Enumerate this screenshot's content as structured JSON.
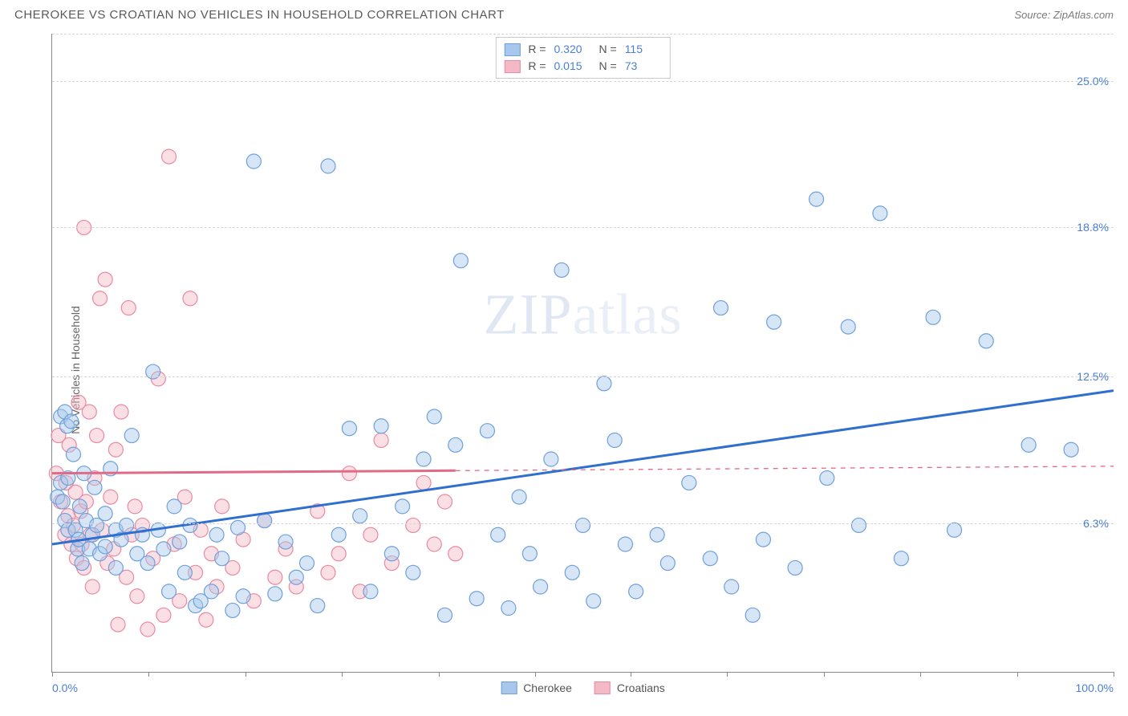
{
  "title": "CHEROKEE VS CROATIAN NO VEHICLES IN HOUSEHOLD CORRELATION CHART",
  "source": "Source: ZipAtlas.com",
  "ylabel": "No Vehicles in Household",
  "watermark": "ZIPatlas",
  "chart": {
    "type": "scatter",
    "background_color": "#ffffff",
    "grid_color": "#d8d8d8",
    "axis_color": "#888888",
    "label_color": "#4a7fd6",
    "text_color": "#666666",
    "xlim": [
      0,
      100
    ],
    "ylim": [
      0,
      27
    ],
    "xtick_labels": {
      "left": "0.0%",
      "right": "100.0%"
    },
    "xtick_positions": [
      0,
      9.1,
      18.2,
      27.3,
      36.4,
      45.5,
      54.5,
      63.6,
      72.7,
      81.8,
      90.9,
      100
    ],
    "yticks": [
      {
        "value": 6.3,
        "label": "6.3%"
      },
      {
        "value": 12.5,
        "label": "12.5%"
      },
      {
        "value": 18.8,
        "label": "18.8%"
      },
      {
        "value": 25.0,
        "label": "25.0%"
      }
    ],
    "marker_radius": 9,
    "marker_opacity": 0.45,
    "line_width_solid": 3,
    "line_width_dash": 1.3,
    "series": [
      {
        "name": "Cherokee",
        "fill": "#a7c7ec",
        "stroke": "#6fa0db",
        "line_color": "#2f6fd0",
        "R": "0.320",
        "N": "115",
        "trend": {
          "x1": 0,
          "y1": 5.4,
          "x2": 100,
          "y2": 11.9,
          "dash": false
        },
        "points": [
          [
            0.5,
            7.4
          ],
          [
            0.8,
            10.8
          ],
          [
            0.8,
            8.0
          ],
          [
            1.0,
            7.2
          ],
          [
            1.2,
            11.0
          ],
          [
            1.2,
            6.4
          ],
          [
            1.4,
            10.4
          ],
          [
            1.5,
            6.0
          ],
          [
            1.5,
            8.2
          ],
          [
            1.8,
            10.6
          ],
          [
            2.0,
            9.2
          ],
          [
            2.2,
            6.0
          ],
          [
            2.4,
            5.2
          ],
          [
            2.5,
            5.6
          ],
          [
            2.6,
            7.0
          ],
          [
            2.8,
            4.6
          ],
          [
            3.0,
            8.4
          ],
          [
            3.2,
            6.4
          ],
          [
            3.5,
            5.2
          ],
          [
            3.8,
            5.8
          ],
          [
            4.0,
            7.8
          ],
          [
            4.2,
            6.2
          ],
          [
            4.5,
            5.0
          ],
          [
            5.0,
            6.7
          ],
          [
            5.0,
            5.3
          ],
          [
            5.5,
            8.6
          ],
          [
            6.0,
            4.4
          ],
          [
            6.0,
            6.0
          ],
          [
            6.5,
            5.6
          ],
          [
            7.0,
            6.2
          ],
          [
            7.5,
            10.0
          ],
          [
            8.0,
            5.0
          ],
          [
            8.5,
            5.8
          ],
          [
            9.0,
            4.6
          ],
          [
            9.5,
            12.7
          ],
          [
            10.0,
            6.0
          ],
          [
            10.5,
            5.2
          ],
          [
            11.0,
            3.4
          ],
          [
            11.5,
            7.0
          ],
          [
            12.0,
            5.5
          ],
          [
            12.5,
            4.2
          ],
          [
            13.0,
            6.2
          ],
          [
            13.5,
            2.8
          ],
          [
            14.0,
            3.0
          ],
          [
            15.0,
            3.4
          ],
          [
            15.5,
            5.8
          ],
          [
            16.0,
            4.8
          ],
          [
            17.0,
            2.6
          ],
          [
            17.5,
            6.1
          ],
          [
            18.0,
            3.2
          ],
          [
            19.0,
            21.6
          ],
          [
            20.0,
            6.4
          ],
          [
            21.0,
            3.3
          ],
          [
            22.0,
            5.5
          ],
          [
            23.0,
            4.0
          ],
          [
            24.0,
            4.6
          ],
          [
            25.0,
            2.8
          ],
          [
            26.0,
            21.4
          ],
          [
            27.0,
            5.8
          ],
          [
            28.0,
            10.3
          ],
          [
            29.0,
            6.6
          ],
          [
            30.0,
            3.4
          ],
          [
            31.0,
            10.4
          ],
          [
            32.0,
            5.0
          ],
          [
            33.0,
            7.0
          ],
          [
            34.0,
            4.2
          ],
          [
            35.0,
            9.0
          ],
          [
            36.0,
            10.8
          ],
          [
            37.0,
            2.4
          ],
          [
            38.0,
            9.6
          ],
          [
            38.5,
            17.4
          ],
          [
            40.0,
            3.1
          ],
          [
            41.0,
            10.2
          ],
          [
            42.0,
            5.8
          ],
          [
            43.0,
            2.7
          ],
          [
            44.0,
            7.4
          ],
          [
            45.0,
            5.0
          ],
          [
            46.0,
            3.6
          ],
          [
            47.0,
            9.0
          ],
          [
            48.0,
            17.0
          ],
          [
            49.0,
            4.2
          ],
          [
            50.0,
            6.2
          ],
          [
            51.0,
            3.0
          ],
          [
            52.0,
            12.2
          ],
          [
            53.0,
            9.8
          ],
          [
            54.0,
            5.4
          ],
          [
            55.0,
            3.4
          ],
          [
            57.0,
            5.8
          ],
          [
            58.0,
            4.6
          ],
          [
            60.0,
            8.0
          ],
          [
            62.0,
            4.8
          ],
          [
            63.0,
            15.4
          ],
          [
            64.0,
            3.6
          ],
          [
            66.0,
            2.4
          ],
          [
            67.0,
            5.6
          ],
          [
            68.0,
            14.8
          ],
          [
            70.0,
            4.4
          ],
          [
            72.0,
            20.0
          ],
          [
            73.0,
            8.2
          ],
          [
            75.0,
            14.6
          ],
          [
            76.0,
            6.2
          ],
          [
            78.0,
            19.4
          ],
          [
            80.0,
            4.8
          ],
          [
            83.0,
            15.0
          ],
          [
            85.0,
            6.0
          ],
          [
            88.0,
            14.0
          ],
          [
            92.0,
            9.6
          ],
          [
            96.0,
            9.4
          ]
        ]
      },
      {
        "name": "Croatians",
        "fill": "#f3b9c6",
        "stroke": "#e98aa1",
        "line_color": "#e06b87",
        "R": "0.015",
        "N": "73",
        "trend": {
          "x1": 0,
          "y1": 8.4,
          "x2": 100,
          "y2": 8.7,
          "dash_after": 38
        },
        "points": [
          [
            0.4,
            8.4
          ],
          [
            0.6,
            10.0
          ],
          [
            0.8,
            7.2
          ],
          [
            1.2,
            5.8
          ],
          [
            1.3,
            8.0
          ],
          [
            1.5,
            6.6
          ],
          [
            1.6,
            9.6
          ],
          [
            1.8,
            5.4
          ],
          [
            2.0,
            6.2
          ],
          [
            2.2,
            7.6
          ],
          [
            2.3,
            4.8
          ],
          [
            2.5,
            11.4
          ],
          [
            2.7,
            6.8
          ],
          [
            2.8,
            5.4
          ],
          [
            3.0,
            4.4
          ],
          [
            3.0,
            18.8
          ],
          [
            3.2,
            7.2
          ],
          [
            3.5,
            11.0
          ],
          [
            3.6,
            5.8
          ],
          [
            3.8,
            3.6
          ],
          [
            4.0,
            8.2
          ],
          [
            4.2,
            10.0
          ],
          [
            4.5,
            15.8
          ],
          [
            4.7,
            6.0
          ],
          [
            5.0,
            16.6
          ],
          [
            5.2,
            4.6
          ],
          [
            5.5,
            7.4
          ],
          [
            5.8,
            5.2
          ],
          [
            6.0,
            9.4
          ],
          [
            6.2,
            2.0
          ],
          [
            6.5,
            11.0
          ],
          [
            7.0,
            4.0
          ],
          [
            7.2,
            15.4
          ],
          [
            7.5,
            5.8
          ],
          [
            7.8,
            7.0
          ],
          [
            8.0,
            3.2
          ],
          [
            8.5,
            6.2
          ],
          [
            9.0,
            1.8
          ],
          [
            9.5,
            4.8
          ],
          [
            10.0,
            12.4
          ],
          [
            10.5,
            2.4
          ],
          [
            11.0,
            21.8
          ],
          [
            11.5,
            5.4
          ],
          [
            12.0,
            3.0
          ],
          [
            12.5,
            7.4
          ],
          [
            13.0,
            15.8
          ],
          [
            13.5,
            4.2
          ],
          [
            14.0,
            6.0
          ],
          [
            14.5,
            2.2
          ],
          [
            15.0,
            5.0
          ],
          [
            15.5,
            3.6
          ],
          [
            16.0,
            7.0
          ],
          [
            17.0,
            4.4
          ],
          [
            18.0,
            5.6
          ],
          [
            19.0,
            3.0
          ],
          [
            20.0,
            6.4
          ],
          [
            21.0,
            4.0
          ],
          [
            22.0,
            5.2
          ],
          [
            23.0,
            3.6
          ],
          [
            25.0,
            6.8
          ],
          [
            26.0,
            4.2
          ],
          [
            27.0,
            5.0
          ],
          [
            28.0,
            8.4
          ],
          [
            29.0,
            3.4
          ],
          [
            30.0,
            5.8
          ],
          [
            31.0,
            9.8
          ],
          [
            32.0,
            4.6
          ],
          [
            34.0,
            6.2
          ],
          [
            35.0,
            8.0
          ],
          [
            36.0,
            5.4
          ],
          [
            37.0,
            7.2
          ],
          [
            38.0,
            5.0
          ]
        ]
      }
    ]
  }
}
